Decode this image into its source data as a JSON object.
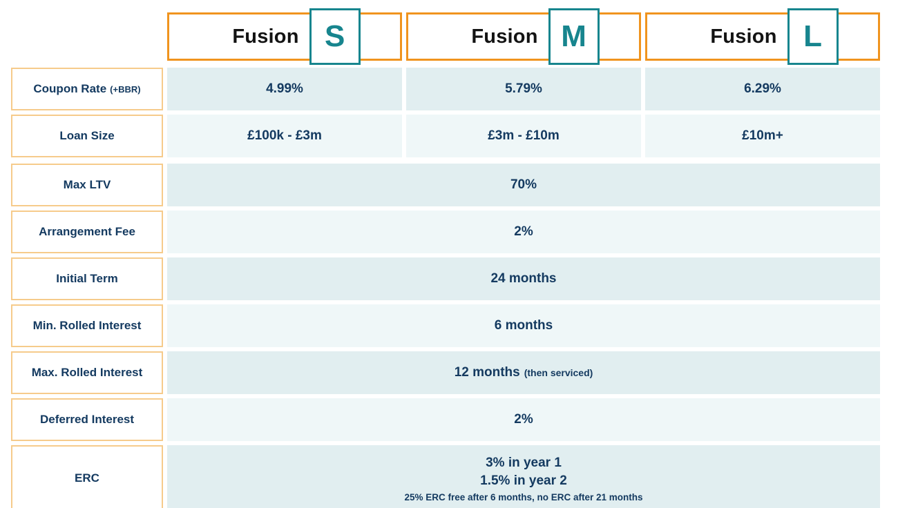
{
  "colors": {
    "accent_orange": "#F0941E",
    "accent_orange_light": "#F6CB8B",
    "accent_teal": "#17858E",
    "text_navy": "#143A60",
    "cell_shade_dark": "#E1EEF0",
    "cell_shade_light": "#EFF7F8"
  },
  "columns": [
    {
      "brand": "Fusion",
      "letter": "S"
    },
    {
      "brand": "Fusion",
      "letter": "M"
    },
    {
      "brand": "Fusion",
      "letter": "L"
    }
  ],
  "rows": [
    {
      "label": "Coupon Rate",
      "label_suffix": "(+BBR)",
      "values": [
        "4.99%",
        "5.79%",
        "6.29%"
      ]
    },
    {
      "label": "Loan Size",
      "values": [
        "£100k - £3m",
        "£3m - £10m",
        "£10m+"
      ]
    },
    {
      "label": "Max LTV",
      "value": "70%"
    },
    {
      "label": "Arrangement Fee",
      "value": "2%"
    },
    {
      "label": "Initial Term",
      "value": "24 months"
    },
    {
      "label": "Min. Rolled Interest",
      "value": "6 months"
    },
    {
      "label": "Max. Rolled Interest",
      "value": "12 months",
      "value_suffix": "(then serviced)"
    },
    {
      "label": "Deferred Interest",
      "value": "2%"
    },
    {
      "label": "ERC",
      "value_line1": "3% in year 1",
      "value_line2": "1.5% in year 2",
      "value_note": "25% ERC free after 6 months, no ERC after 21 months"
    }
  ],
  "chart_data": {
    "type": "table",
    "title": "Fusion product comparison",
    "columns": [
      "",
      "Fusion S",
      "Fusion M",
      "Fusion L"
    ],
    "rows": [
      [
        "Coupon Rate (+BBR)",
        "4.99%",
        "5.79%",
        "6.29%"
      ],
      [
        "Loan Size",
        "£100k - £3m",
        "£3m - £10m",
        "£10m+"
      ],
      [
        "Max LTV",
        "70% (all products)"
      ],
      [
        "Arrangement Fee",
        "2% (all products)"
      ],
      [
        "Initial Term",
        "24 months (all products)"
      ],
      [
        "Min. Rolled Interest",
        "6 months (all products)"
      ],
      [
        "Max. Rolled Interest",
        "12 months (then serviced) (all products)"
      ],
      [
        "Deferred Interest",
        "2% (all products)"
      ],
      [
        "ERC",
        "3% in year 1; 1.5% in year 2; 25% ERC free after 6 months, no ERC after 21 months (all products)"
      ]
    ],
    "layout": {
      "merged_rows_span_all_columns": [
        2,
        3,
        4,
        5,
        6,
        7,
        8
      ],
      "row_shading_alternates": true
    }
  }
}
